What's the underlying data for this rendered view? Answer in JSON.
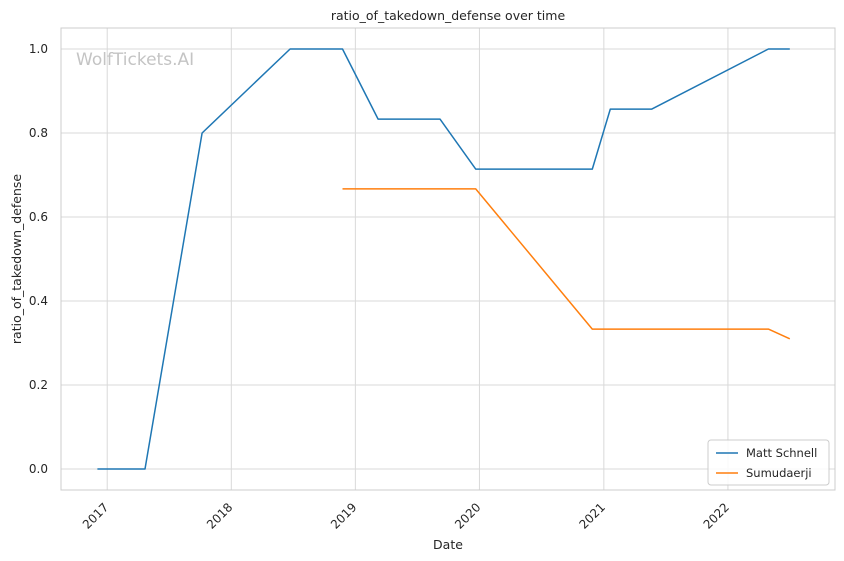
{
  "watermark": "WolfTickets.AI",
  "chart_data": {
    "type": "line",
    "title": "ratio_of_takedown_defense over time",
    "xlabel": "Date",
    "ylabel": "ratio_of_takedown_defense",
    "x_ticks": [
      "2017",
      "2018",
      "2019",
      "2020",
      "2021",
      "2022"
    ],
    "y_ticks": [
      "0.0",
      "0.2",
      "0.4",
      "0.6",
      "0.8",
      "1.0"
    ],
    "xlim": [
      "2016-08-18",
      "2022-11-12"
    ],
    "ylim": [
      -0.05,
      1.05
    ],
    "grid": true,
    "legend_position": "bottom-right",
    "series": [
      {
        "name": "Matt Schnell",
        "color": "#1f77b4",
        "points": [
          [
            "2016-12-03",
            0.0
          ],
          [
            "2017-04-22",
            0.0
          ],
          [
            "2017-10-07",
            0.8
          ],
          [
            "2018-06-23",
            1.0
          ],
          [
            "2018-11-24",
            1.0
          ],
          [
            "2019-03-09",
            0.833
          ],
          [
            "2019-09-07",
            0.833
          ],
          [
            "2019-12-21",
            0.714
          ],
          [
            "2020-11-28",
            0.714
          ],
          [
            "2021-01-20",
            0.857
          ],
          [
            "2021-05-22",
            0.857
          ],
          [
            "2022-04-30",
            1.0
          ],
          [
            "2022-07-02",
            1.0
          ]
        ]
      },
      {
        "name": "Sumudaerji",
        "color": "#ff7f0e",
        "points": [
          [
            "2018-11-24",
            0.667
          ],
          [
            "2019-12-21",
            0.667
          ],
          [
            "2020-11-28",
            0.333
          ],
          [
            "2022-04-30",
            0.333
          ],
          [
            "2022-07-02",
            0.31
          ]
        ]
      }
    ]
  }
}
